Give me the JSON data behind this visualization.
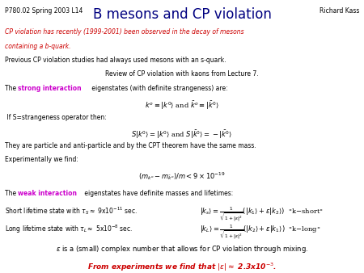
{
  "title": "B mesons and CP violation",
  "header_left": "P780.02 Spring 2003 L14",
  "header_right": "Richard Kass",
  "background_color": "#ffffff",
  "title_color": "#000080",
  "header_color": "#000000",
  "red_color": "#cc0000",
  "magenta_color": "#cc00cc",
  "blue_color": "#000080",
  "black_color": "#000000"
}
